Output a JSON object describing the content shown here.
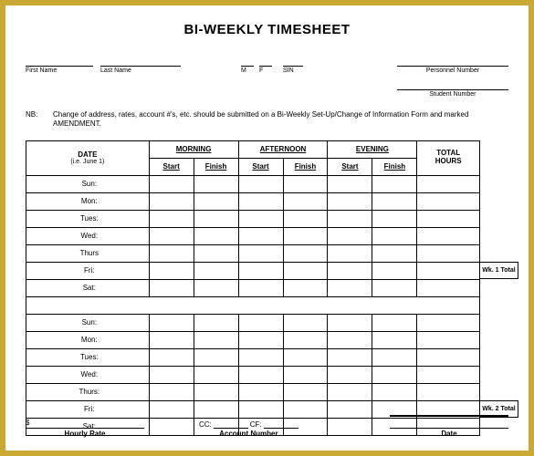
{
  "title": "BI-WEEKLY TIMESHEET",
  "fields": {
    "first_name": "First Name",
    "last_name": "Last Name",
    "m": "M",
    "f": "F",
    "sin": "SIN",
    "personnel_number": "Personnel  Number",
    "student_number": "Student Number"
  },
  "nb": {
    "label": "NB:",
    "text": "Change of address, rates, account #'s, etc. should be submitted on a Bi-Weekly Set-Up/Change of Information Form and marked AMENDMENT."
  },
  "table": {
    "date_header": "DATE",
    "date_sub": "(i.e. June 1)",
    "sections": [
      "MORNING",
      "AFTERNOON",
      "EVENING"
    ],
    "start": "Start",
    "finish": "Finish",
    "total_hours_1": "TOTAL",
    "total_hours_2": "HOURS",
    "days": [
      "Sun:",
      "Mon:",
      "Tues:",
      "Wed:",
      "Thurs",
      "Fri:",
      "Sat:",
      "Sun:",
      "Mon:",
      "Tues:",
      "Wed:",
      "Thurs:",
      "Fri:",
      "Sat:"
    ],
    "wk1_total": "Wk. 1 Total",
    "wk2_total": "Wk. 2 Total"
  },
  "footer": {
    "dollar": "$",
    "hourly_rate": "Hourly Rate",
    "cc": "CC:",
    "cf": "CF:",
    "account_number": "Account Number",
    "date": "Date"
  },
  "colors": {
    "frame": "#c9a934",
    "page": "#ffffff",
    "line": "#000000"
  }
}
